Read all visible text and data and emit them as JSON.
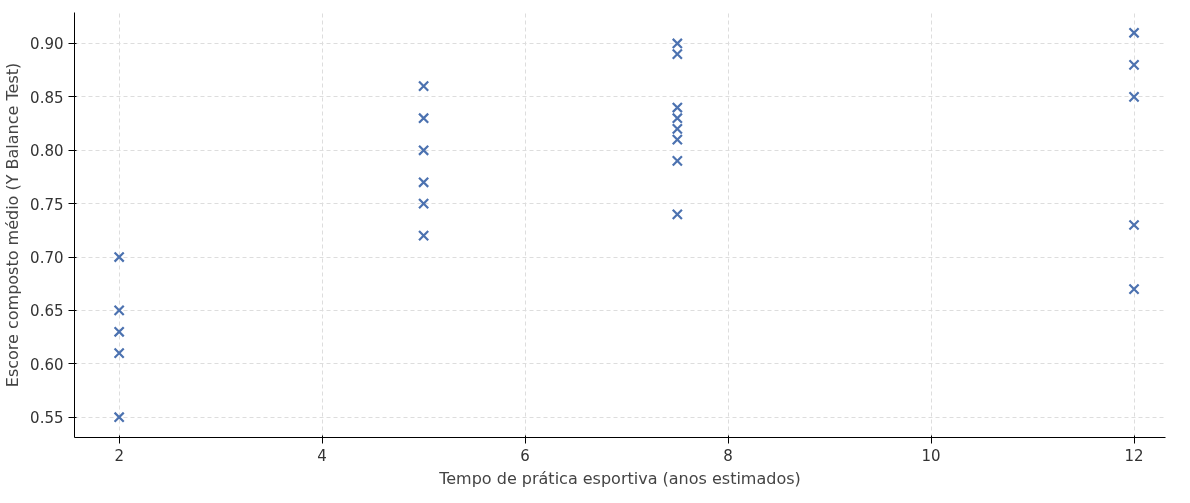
{
  "chart_data": {
    "type": "scatter",
    "xlabel": "Tempo de prática esportiva (anos estimados)",
    "ylabel": "Escore composto médio (Y Balance Test)",
    "x": [
      2,
      2,
      2,
      2,
      2,
      5,
      5,
      5,
      5,
      5,
      5,
      7.5,
      7.5,
      7.5,
      7.5,
      7.5,
      7.5,
      7.5,
      7.5,
      12,
      12,
      12,
      12,
      12
    ],
    "series": [
      {
        "color": "#4c72b0",
        "values": [
          0.7,
          0.65,
          0.63,
          0.61,
          0.55,
          0.86,
          0.83,
          0.8,
          0.77,
          0.75,
          0.72,
          0.9,
          0.89,
          0.84,
          0.83,
          0.82,
          0.81,
          0.79,
          0.74,
          0.91,
          0.88,
          0.85,
          0.73,
          0.67
        ]
      }
    ],
    "marker": "cross",
    "grid": true,
    "xlim": [
      1.56,
      12.31
    ],
    "ylim": [
      0.531,
      0.929
    ],
    "xticks": [
      2,
      4,
      6,
      8,
      10,
      12
    ],
    "yticks": [
      {
        "value": 0.55,
        "label": "0.55"
      },
      {
        "value": 0.6,
        "label": "0.60"
      },
      {
        "value": 0.65,
        "label": "0.65"
      },
      {
        "value": 0.7,
        "label": "0.70"
      },
      {
        "value": 0.75,
        "label": "0.75"
      },
      {
        "value": 0.8,
        "label": "0.80"
      },
      {
        "value": 0.85,
        "label": "0.85"
      },
      {
        "value": 0.9,
        "label": "0.90"
      }
    ]
  }
}
